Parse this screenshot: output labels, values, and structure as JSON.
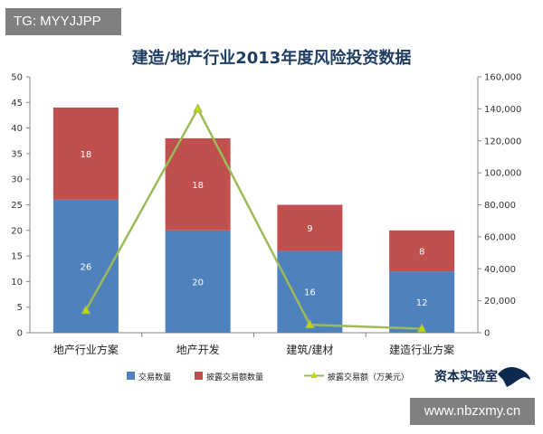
{
  "watermarks": {
    "top_left": "TG: MYYJJPP",
    "bottom_right": "www.nbzxmy.cn"
  },
  "brand_logo": "资本实验室",
  "chart_data": {
    "type": "bar",
    "stacked": true,
    "title": "建造/地产行业2013年度风险投资数据",
    "categories": [
      "地产行业方案",
      "地产开发",
      "建筑/建材",
      "建造行业方案"
    ],
    "series": [
      {
        "name": "交易数量",
        "axis": "left",
        "type": "bar",
        "color": "#4f81bd",
        "values": [
          26,
          20,
          16,
          12
        ]
      },
      {
        "name": "披露交易额数量",
        "axis": "left",
        "type": "bar",
        "color": "#c0504d",
        "values": [
          18,
          18,
          9,
          8
        ]
      },
      {
        "name": "披露交易额（万美元）",
        "axis": "right",
        "type": "line",
        "color": "#9bbb59",
        "values": [
          14000,
          140000,
          5000,
          2500
        ]
      }
    ],
    "y_left": {
      "min": 0,
      "max": 50,
      "ticks": [
        "0",
        "5",
        "10",
        "15",
        "20",
        "25",
        "30",
        "35",
        "40",
        "45",
        "50"
      ]
    },
    "y_right": {
      "min": 0,
      "max": 160000,
      "ticks": [
        "0",
        "20,000",
        "40,000",
        "60,000",
        "80,000",
        "100,000",
        "120,000",
        "140,000",
        "160,000"
      ]
    },
    "legend_position": "bottom",
    "grid": false
  }
}
